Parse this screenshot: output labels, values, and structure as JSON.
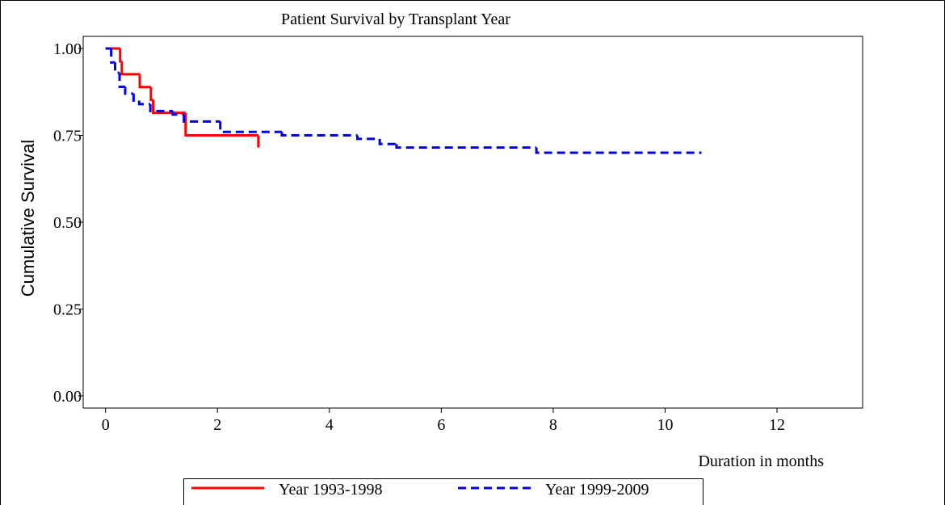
{
  "chart_data": {
    "type": "step",
    "title": "Patient Survival by Transplant Year",
    "x_label": "Duration in months",
    "y_label": "Cumulative Survival",
    "xlim": [
      -0.4,
      13.53
    ],
    "ylim": [
      -0.035,
      1.035
    ],
    "xticks": [
      0,
      2,
      4,
      6,
      8,
      10,
      12
    ],
    "yticks": [
      {
        "value": 0,
        "label": "0.00"
      },
      {
        "value": 0.25,
        "label": "0.25"
      },
      {
        "value": 0.5,
        "label": "0.50"
      },
      {
        "value": 0.75,
        "label": "0.75"
      },
      {
        "value": 1,
        "label": "1.00"
      }
    ],
    "legend": "bottom",
    "series": [
      {
        "name": "Year 1993-1998",
        "color": "#ff0000",
        "dash": false,
        "x": [
          0,
          0.26,
          0.29,
          0.61,
          0.81,
          0.85,
          1.43,
          2.73
        ],
        "values": [
          1,
          0.963,
          0.926,
          0.889,
          0.852,
          0.815,
          0.75,
          0.715
        ]
      },
      {
        "name": "Year 1999-2009",
        "color": "#0000e0",
        "dash": true,
        "x": [
          0,
          0.1,
          0.17,
          0.25,
          0.35,
          0.5,
          0.6,
          0.8,
          1.2,
          1.4,
          2.05,
          3.15,
          4.5,
          4.9,
          5.2,
          7.7,
          10.65
        ],
        "values": [
          1,
          0.96,
          0.93,
          0.89,
          0.87,
          0.85,
          0.84,
          0.82,
          0.81,
          0.79,
          0.76,
          0.75,
          0.74,
          0.725,
          0.715,
          0.7,
          0.7
        ]
      }
    ]
  }
}
